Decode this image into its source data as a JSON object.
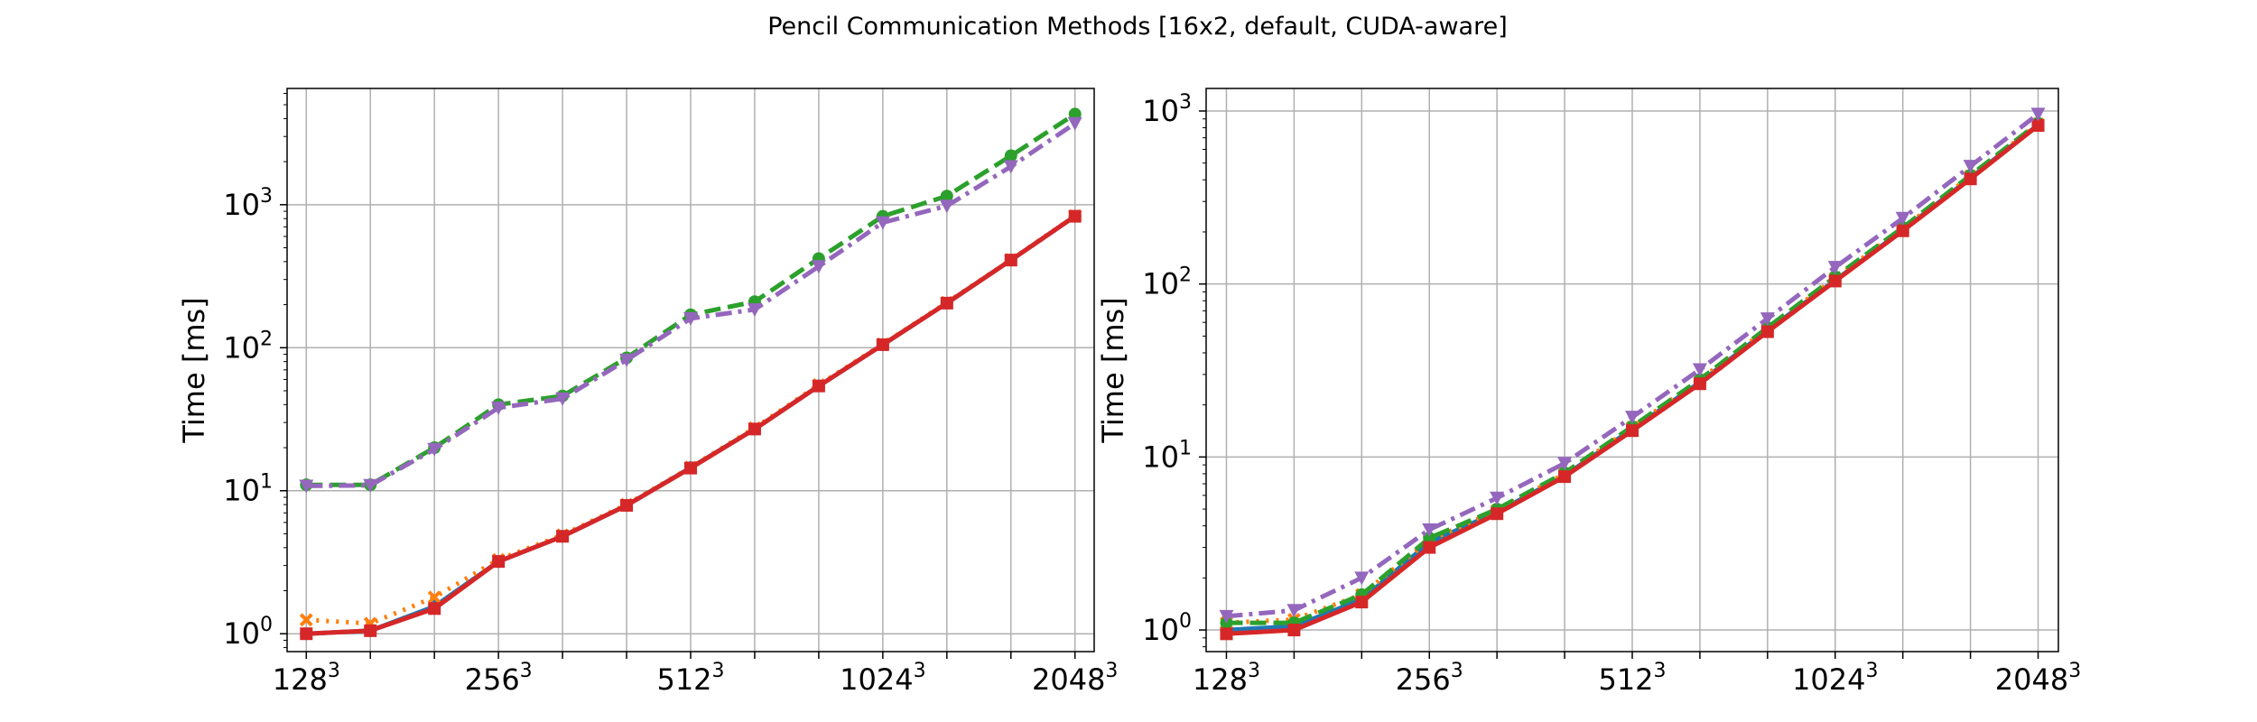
{
  "figure": {
    "title": "Pencil Communication Methods [16x2, default, CUDA-aware]"
  },
  "chart_data": [
    {
      "type": "line",
      "ylabel": "Time [ms]",
      "yscale": "log",
      "ylim": [
        0.75,
        6500
      ],
      "xlim": [
        -0.3,
        12.3
      ],
      "grid": true,
      "x": [
        0,
        1,
        2,
        3,
        4,
        5,
        6,
        7,
        8,
        9,
        10,
        11,
        12
      ],
      "xticks": [
        {
          "x": 0,
          "base": "128",
          "exp": "3"
        },
        {
          "x": 3,
          "base": "256",
          "exp": "3"
        },
        {
          "x": 6,
          "base": "512",
          "exp": "3"
        },
        {
          "x": 9,
          "base": "1024",
          "exp": "3"
        },
        {
          "x": 12,
          "base": "2048",
          "exp": "3"
        }
      ],
      "yticks": [
        {
          "v": 1,
          "exp": "0"
        },
        {
          "v": 10,
          "exp": "1"
        },
        {
          "v": 100,
          "exp": "2"
        },
        {
          "v": 1000,
          "exp": "3"
        }
      ],
      "series": [
        {
          "values": [
            1.0,
            1.05,
            1.55,
            3.2,
            4.8,
            7.9,
            14.5,
            27,
            54,
            105,
            205,
            410,
            830
          ],
          "color": "#1f77b4",
          "dash": "solid",
          "marker": "circle"
        },
        {
          "values": [
            1.25,
            1.18,
            1.8,
            3.3,
            4.9,
            8.0,
            14.6,
            27.5,
            55,
            106,
            207,
            412,
            835
          ],
          "color": "#ff7f0e",
          "dash": "dotted",
          "marker": "x"
        },
        {
          "values": [
            11,
            11,
            20,
            40,
            46,
            85,
            170,
            210,
            420,
            830,
            1150,
            2200,
            4300
          ],
          "color": "#2ca02c",
          "dash": "dashed",
          "marker": "circle"
        },
        {
          "values": [
            1.0,
            1.05,
            1.5,
            3.2,
            4.8,
            7.9,
            14.4,
            27,
            54,
            105,
            205,
            410,
            830
          ],
          "color": "#d62728",
          "dash": "solid",
          "marker": "square"
        },
        {
          "values": [
            10.8,
            10.9,
            19.5,
            38,
            44,
            82,
            160,
            185,
            370,
            750,
            980,
            1850,
            3700
          ],
          "color": "#9467bd",
          "dash": "dashdot",
          "marker": "triangle"
        }
      ]
    },
    {
      "type": "line",
      "ylabel": "Time [ms]",
      "yscale": "log",
      "ylim": [
        0.75,
        1350
      ],
      "xlim": [
        -0.3,
        12.3
      ],
      "grid": true,
      "x": [
        0,
        1,
        2,
        3,
        4,
        5,
        6,
        7,
        8,
        9,
        10,
        11,
        12
      ],
      "xticks": [
        {
          "x": 0,
          "base": "128",
          "exp": "3"
        },
        {
          "x": 3,
          "base": "256",
          "exp": "3"
        },
        {
          "x": 6,
          "base": "512",
          "exp": "3"
        },
        {
          "x": 9,
          "base": "1024",
          "exp": "3"
        },
        {
          "x": 12,
          "base": "2048",
          "exp": "3"
        }
      ],
      "yticks": [
        {
          "v": 1,
          "exp": "0"
        },
        {
          "v": 10,
          "exp": "1"
        },
        {
          "v": 100,
          "exp": "2"
        },
        {
          "v": 1000,
          "exp": "3"
        }
      ],
      "series": [
        {
          "values": [
            1.0,
            1.05,
            1.5,
            3.2,
            4.8,
            7.8,
            14.5,
            27,
            54,
            105,
            205,
            410,
            830
          ],
          "color": "#1f77b4",
          "dash": "solid",
          "marker": "circle"
        },
        {
          "values": [
            1.1,
            1.15,
            1.6,
            3.3,
            4.9,
            8.0,
            14.8,
            28,
            55,
            108,
            210,
            420,
            840
          ],
          "color": "#ff7f0e",
          "dash": "dotted",
          "marker": "x"
        },
        {
          "values": [
            1.1,
            1.1,
            1.6,
            3.4,
            5.0,
            8.1,
            15,
            28,
            56,
            110,
            212,
            425,
            850
          ],
          "color": "#2ca02c",
          "dash": "dashed",
          "marker": "circle"
        },
        {
          "values": [
            0.95,
            1.0,
            1.45,
            3.0,
            4.7,
            7.7,
            14.2,
            26.5,
            53,
            104,
            203,
            405,
            825
          ],
          "color": "#d62728",
          "dash": "solid",
          "marker": "square"
        },
        {
          "values": [
            1.2,
            1.3,
            2.0,
            3.8,
            5.8,
            9.2,
            17,
            32,
            63,
            125,
            240,
            480,
            960
          ],
          "color": "#9467bd",
          "dash": "dashdot",
          "marker": "triangle"
        }
      ]
    }
  ]
}
